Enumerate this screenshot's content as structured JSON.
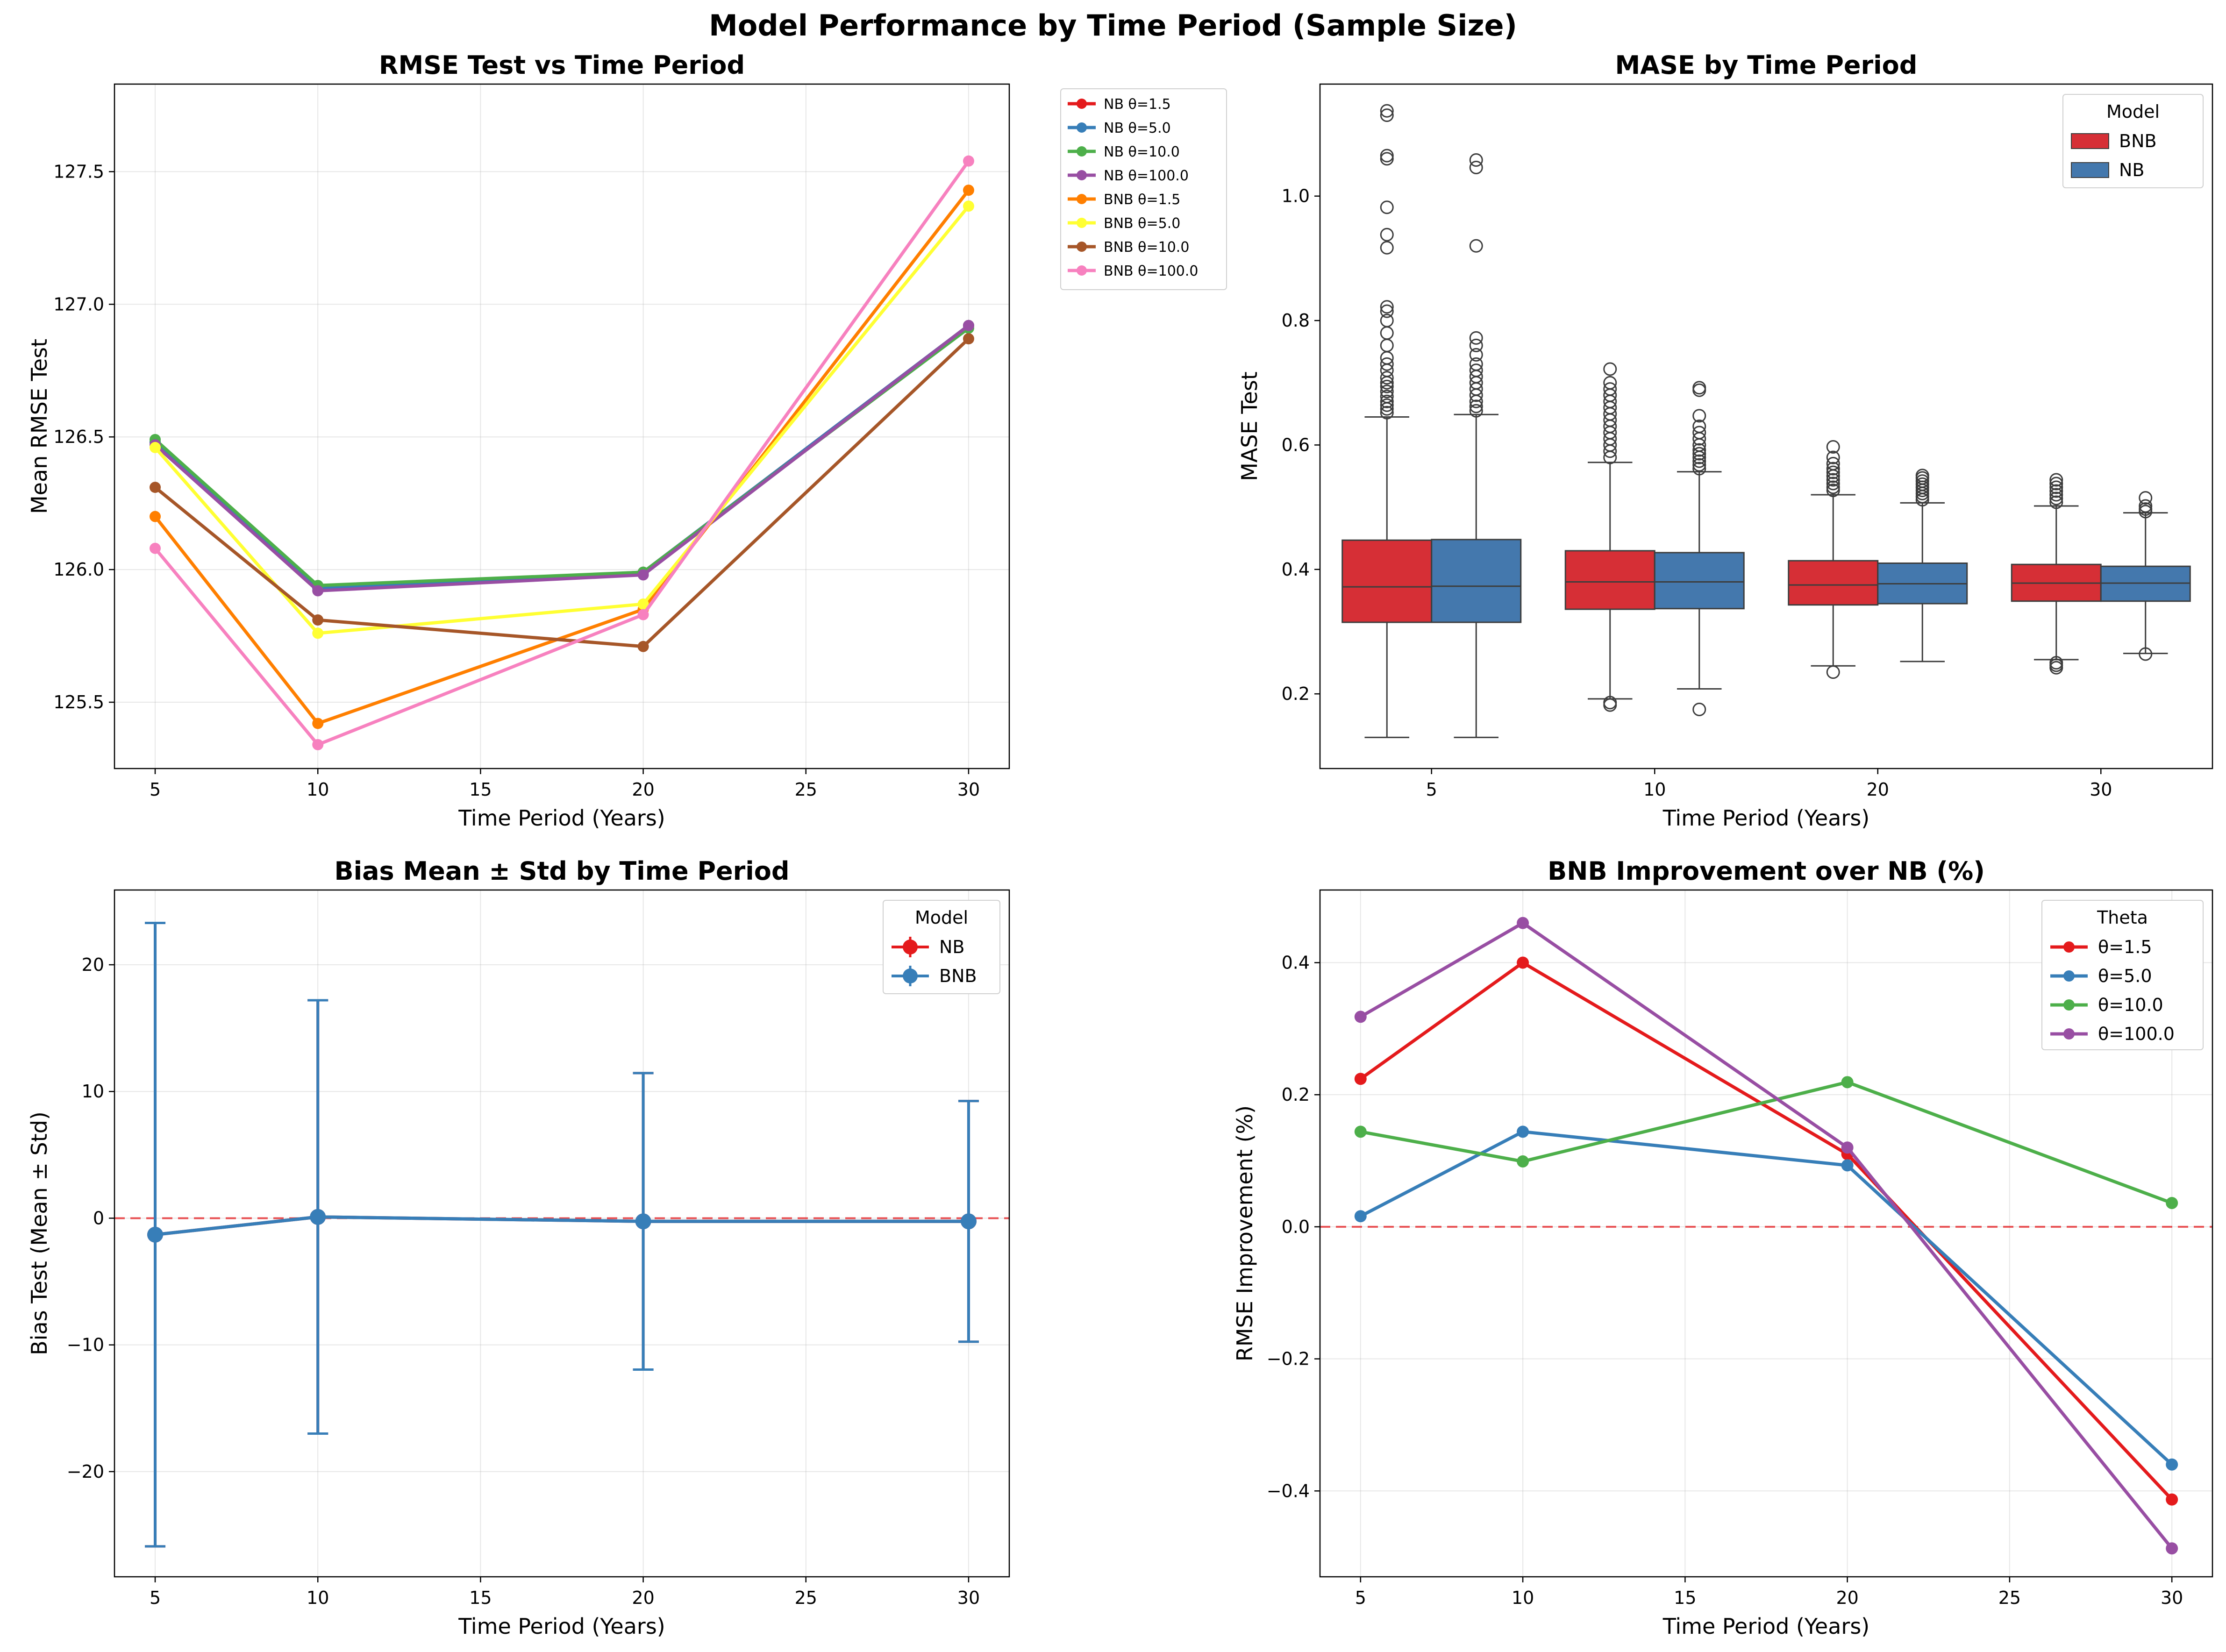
{
  "figure": {
    "title": "Model Performance by Time Period (Sample Size)"
  },
  "chart_data": [
    {
      "type": "line",
      "title": "RMSE Test vs Time Period",
      "xlabel": "Time Period (Years)",
      "ylabel": "Mean RMSE Test",
      "xlim": [
        3.75,
        31.25
      ],
      "ylim": [
        125.25,
        127.83
      ],
      "xticks": [
        5,
        10,
        15,
        20,
        25,
        30
      ],
      "yticks": [
        125.5,
        126.0,
        126.5,
        127.0,
        127.5
      ],
      "grid": true,
      "legend_position": "outside-right",
      "x": [
        5,
        10,
        20,
        30
      ],
      "series": [
        {
          "name": "NB θ=1.5",
          "color": "#e41a1c",
          "values": [
            126.48,
            125.93,
            125.99,
            126.92
          ]
        },
        {
          "name": "NB θ=5.0",
          "color": "#377eb8",
          "values": [
            126.48,
            125.93,
            125.99,
            126.92
          ]
        },
        {
          "name": "NB θ=10.0",
          "color": "#4daf4a",
          "values": [
            126.49,
            125.94,
            125.99,
            126.91
          ]
        },
        {
          "name": "NB θ=100.0",
          "color": "#984ea3",
          "values": [
            126.47,
            125.92,
            125.98,
            126.92
          ]
        },
        {
          "name": "BNB θ=1.5",
          "color": "#ff7f00",
          "values": [
            126.2,
            125.42,
            125.85,
            127.43
          ]
        },
        {
          "name": "BNB θ=5.0",
          "color": "#ffff33",
          "values": [
            126.46,
            125.76,
            125.87,
            127.37
          ]
        },
        {
          "name": "BNB θ=10.0",
          "color": "#a65628",
          "values": [
            126.31,
            125.81,
            125.71,
            126.87
          ]
        },
        {
          "name": "BNB θ=100.0",
          "color": "#f781bf",
          "values": [
            126.08,
            125.34,
            125.83,
            127.54
          ]
        }
      ]
    },
    {
      "type": "box",
      "title": "MASE by Time Period",
      "xlabel": "Time Period (Years)",
      "ylabel": "MASE Test",
      "ylim": [
        0.08,
        1.18
      ],
      "yticks": [
        0.2,
        0.4,
        0.6,
        0.8,
        1.0
      ],
      "categories": [
        "5",
        "10",
        "20",
        "30"
      ],
      "grid": false,
      "legend_title": "Model",
      "legend_position": "top-right",
      "series": [
        {
          "name": "BNB",
          "color": "#d62f36",
          "boxes": [
            {
              "whislo": 0.13,
              "q1": 0.315,
              "med": 0.372,
              "q3": 0.447,
              "whishi": 0.645,
              "fliers": [
                0.652,
                0.658,
                0.664,
                0.67,
                0.678,
                0.686,
                0.694,
                0.7,
                0.708,
                0.72,
                0.73,
                0.74,
                0.76,
                0.78,
                0.8,
                0.815,
                0.822,
                0.917,
                0.938,
                0.982,
                1.06,
                1.065,
                1.13,
                1.137
              ]
            },
            {
              "whislo": 0.192,
              "q1": 0.336,
              "med": 0.38,
              "q3": 0.43,
              "whishi": 0.572,
              "fliers": [
                0.182,
                0.186,
                0.58,
                0.59,
                0.6,
                0.61,
                0.62,
                0.63,
                0.64,
                0.65,
                0.66,
                0.67,
                0.68,
                0.69,
                0.7,
                0.722
              ]
            },
            {
              "whislo": 0.245,
              "q1": 0.343,
              "med": 0.375,
              "q3": 0.414,
              "whishi": 0.52,
              "fliers": [
                0.235,
                0.527,
                0.532,
                0.538,
                0.544,
                0.55,
                0.556,
                0.562,
                0.57,
                0.58,
                0.597
              ]
            },
            {
              "whislo": 0.255,
              "q1": 0.349,
              "med": 0.378,
              "q3": 0.408,
              "whishi": 0.502,
              "fliers": [
                0.242,
                0.246,
                0.25,
                0.508,
                0.514,
                0.52,
                0.526,
                0.532,
                0.538,
                0.544
              ]
            }
          ]
        },
        {
          "name": "NB",
          "color": "#4478ad",
          "boxes": [
            {
              "whislo": 0.13,
              "q1": 0.315,
              "med": 0.373,
              "q3": 0.448,
              "whishi": 0.649,
              "fliers": [
                0.655,
                0.662,
                0.67,
                0.68,
                0.69,
                0.7,
                0.71,
                0.72,
                0.73,
                0.745,
                0.76,
                0.772,
                0.92,
                1.046,
                1.058
              ]
            },
            {
              "whislo": 0.208,
              "q1": 0.337,
              "med": 0.38,
              "q3": 0.427,
              "whishi": 0.557,
              "fliers": [
                0.175,
                0.562,
                0.568,
                0.574,
                0.58,
                0.586,
                0.592,
                0.6,
                0.61,
                0.62,
                0.63,
                0.647,
                0.688,
                0.692
              ]
            },
            {
              "whislo": 0.252,
              "q1": 0.345,
              "med": 0.377,
              "q3": 0.41,
              "whishi": 0.507,
              "fliers": [
                0.512,
                0.517,
                0.522,
                0.527,
                0.532,
                0.537,
                0.542,
                0.547,
                0.551
              ]
            },
            {
              "whislo": 0.265,
              "q1": 0.349,
              "med": 0.378,
              "q3": 0.405,
              "whishi": 0.491,
              "fliers": [
                0.264,
                0.493,
                0.497,
                0.502,
                0.515
              ]
            }
          ]
        }
      ]
    },
    {
      "type": "errorbar",
      "title": "Bias Mean ± Std by Time Period",
      "xlabel": "Time Period (Years)",
      "ylabel": "Bias Test (Mean ± Std)",
      "xlim": [
        3.75,
        31.25
      ],
      "ylim": [
        -28.3,
        25.9
      ],
      "xticks": [
        5,
        10,
        15,
        20,
        25,
        30
      ],
      "yticks": [
        -20,
        -10,
        0,
        10,
        20
      ],
      "grid": true,
      "legend_title": "Model",
      "legend_position": "top-right",
      "reference_line": 0,
      "x": [
        5,
        10,
        20,
        30
      ],
      "series": [
        {
          "name": "NB",
          "color": "#e41a1c",
          "values": [
            -1.3,
            0.1,
            -0.25,
            -0.25
          ],
          "std": [
            24.6,
            17.1,
            11.7,
            9.5
          ]
        },
        {
          "name": "BNB",
          "color": "#377eb8",
          "values": [
            -1.3,
            0.1,
            -0.25,
            -0.25
          ],
          "std": [
            24.6,
            17.1,
            11.7,
            9.5
          ]
        }
      ]
    },
    {
      "type": "line",
      "title": "BNB Improvement over NB (%)",
      "xlabel": "Time Period (Years)",
      "ylabel": "RMSE Improvement (%)",
      "xlim": [
        3.75,
        31.25
      ],
      "ylim": [
        -0.53,
        0.51
      ],
      "xticks": [
        5,
        10,
        15,
        20,
        25,
        30
      ],
      "yticks": [
        -0.4,
        -0.2,
        0.0,
        0.2,
        0.4
      ],
      "grid": true,
      "legend_title": "Theta",
      "legend_position": "top-right",
      "reference_line": 0,
      "x": [
        5,
        10,
        20,
        30
      ],
      "series": [
        {
          "name": "θ=1.5",
          "color": "#e41a1c",
          "values": [
            0.224,
            0.4,
            0.11,
            -0.413
          ]
        },
        {
          "name": "θ=5.0",
          "color": "#377eb8",
          "values": [
            0.016,
            0.144,
            0.093,
            -0.36
          ]
        },
        {
          "name": "θ=10.0",
          "color": "#4daf4a",
          "values": [
            0.144,
            0.099,
            0.219,
            0.036
          ]
        },
        {
          "name": "θ=100.0",
          "color": "#984ea3",
          "values": [
            0.318,
            0.46,
            0.12,
            -0.487
          ]
        }
      ]
    }
  ]
}
